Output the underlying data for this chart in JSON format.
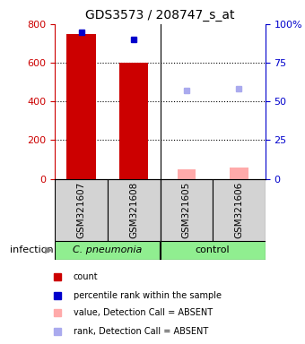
{
  "title": "GDS3573 / 208747_s_at",
  "samples": [
    "GSM321607",
    "GSM321608",
    "GSM321605",
    "GSM321606"
  ],
  "counts": [
    750,
    600,
    null,
    null
  ],
  "count_color": "#cc0000",
  "count_absent_values": [
    null,
    null,
    50,
    60
  ],
  "count_absent_color": "#ffaaaa",
  "percentile_ranks": [
    95,
    90,
    null,
    null
  ],
  "percentile_rank_color": "#0000cc",
  "percentile_absent": [
    null,
    null,
    57,
    58
  ],
  "percentile_absent_color": "#aaaaee",
  "ylim_left": [
    0,
    800
  ],
  "ylim_right": [
    0,
    100
  ],
  "yticks_left": [
    0,
    200,
    400,
    600,
    800
  ],
  "yticks_right": [
    0,
    25,
    50,
    75,
    100
  ],
  "ytick_labels_right": [
    "0",
    "25",
    "50",
    "75",
    "100%"
  ],
  "left_axis_color": "#cc0000",
  "right_axis_color": "#0000cc",
  "legend_items": [
    {
      "label": "count",
      "color": "#cc0000"
    },
    {
      "label": "percentile rank within the sample",
      "color": "#0000cc"
    },
    {
      "label": "value, Detection Call = ABSENT",
      "color": "#ffaaaa"
    },
    {
      "label": "rank, Detection Call = ABSENT",
      "color": "#aaaaee"
    }
  ],
  "group_label_1": "C. pneumonia",
  "group_label_2": "control",
  "group_color": "#90ee90",
  "infection_label": "infection",
  "sample_box_color": "#d3d3d3"
}
